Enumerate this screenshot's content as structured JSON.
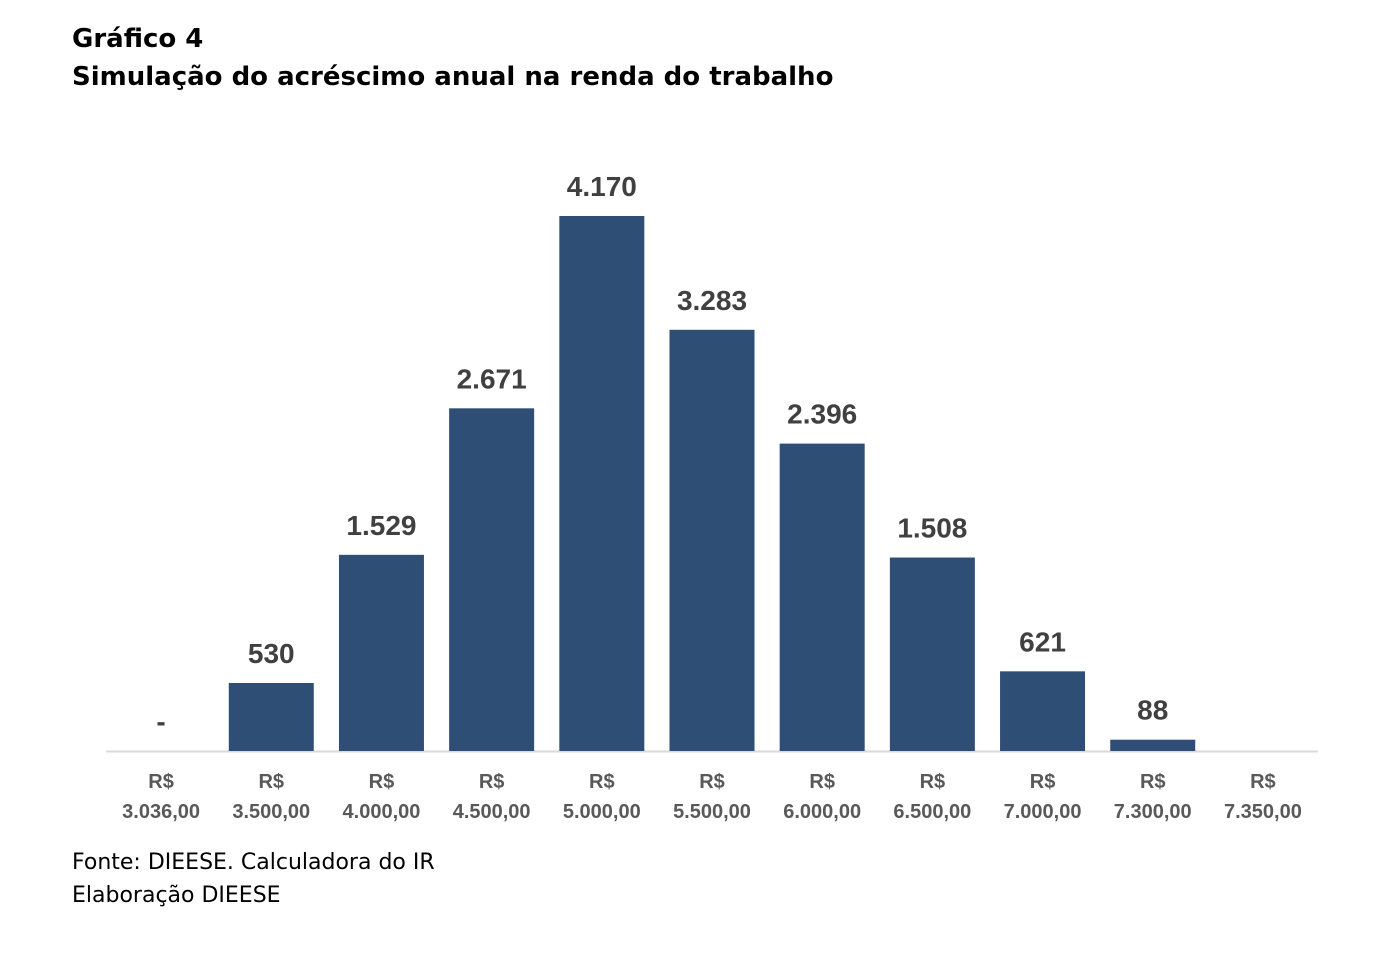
{
  "header": {
    "chart_number": "Gráfico 4",
    "title": "Simulação do acréscimo anual na renda do trabalho"
  },
  "footer": {
    "source": "Fonte: DIEESE. Calculadora do IR",
    "credit": "Elaboração DIEESE"
  },
  "colors": {
    "bar": "#2e4e76",
    "value_label": "#404040",
    "tick_label": "#595959",
    "axis": "#d9d9d9"
  },
  "chart_data": {
    "type": "bar",
    "title": "Simulação do acréscimo anual na renda do trabalho",
    "xlabel": "",
    "ylabel": "",
    "categories": [
      [
        "R$",
        "3.036,00"
      ],
      [
        "R$",
        "3.500,00"
      ],
      [
        "R$",
        "4.000,00"
      ],
      [
        "R$",
        "4.500,00"
      ],
      [
        "R$",
        "5.000,00"
      ],
      [
        "R$",
        "5.500,00"
      ],
      [
        "R$",
        "6.000,00"
      ],
      [
        "R$",
        "6.500,00"
      ],
      [
        "R$",
        "7.000,00"
      ],
      [
        "R$",
        "7.300,00"
      ],
      [
        "R$",
        "7.350,00"
      ]
    ],
    "values": [
      0,
      530,
      1529,
      2671,
      4170,
      3283,
      2396,
      1508,
      621,
      88,
      0
    ],
    "data_labels": [
      "-",
      "530",
      "1.529",
      "2.671",
      "4.170",
      "3.283",
      "2.396",
      "1.508",
      "621",
      "88",
      ""
    ],
    "ylim": [
      0,
      4170
    ],
    "grid": false,
    "legend": "none"
  }
}
